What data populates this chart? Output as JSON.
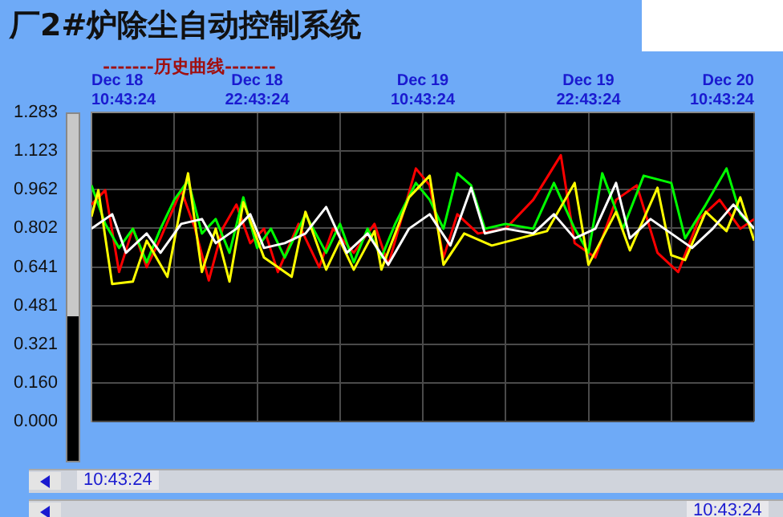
{
  "chart_data": {
    "type": "line",
    "title": "厂2#炉除尘自动控制系统",
    "subtitle": "-------历史曲线-------",
    "xlim": [
      "--12-18T10:43:24",
      "--12-20T10:43:24"
    ],
    "xticks": [
      {
        "value": "--12-18T10:43:24",
        "label": "Dec 18 10:43:24"
      },
      {
        "value": "--12-18T16:43:24",
        "label": null
      },
      {
        "value": "--12-18T22:43:24",
        "label": "Dec 18 22:43:24"
      },
      {
        "value": "--12-19T04:43:24",
        "label": null
      },
      {
        "value": "--12-19T10:43:24",
        "label": "Dec 19 10:43:24"
      },
      {
        "value": "--12-19T16:43:24",
        "label": null
      },
      {
        "value": "--12-19T22:43:24",
        "label": "Dec 19 22:43:24"
      },
      {
        "value": "--12-20T04:43:24",
        "label": null
      },
      {
        "value": "--12-20T10:43:24",
        "label": "Dec 20 10:43:24"
      }
    ],
    "ylim": [
      0,
      1.283
    ],
    "yticks": [
      {
        "value": 0,
        "label": "0.000"
      },
      {
        "value": 0.16,
        "label": "0.160"
      },
      {
        "value": 0.321,
        "label": "0.321"
      },
      {
        "value": 0.481,
        "label": "0.481"
      },
      {
        "value": 0.641,
        "label": "0.641"
      },
      {
        "value": 0.802,
        "label": "0.802"
      },
      {
        "value": 0.962,
        "label": "0.962"
      },
      {
        "value": 1.123,
        "label": "1.123"
      },
      {
        "value": 1.283,
        "label": "1.283"
      }
    ],
    "grid": true,
    "annotations": [
      "10:43:24",
      "10:43:24"
    ],
    "series": [
      {
        "color": "#ff0000",
        "x": [
          "--12-18T10:43:24",
          "--12-18T11:43:24",
          "--12-18T12:43:24",
          "--12-18T13:43:24",
          "--12-18T14:43:24",
          "--12-18T15:43:24",
          "--12-18T17:13:24",
          "--12-18T18:13:24",
          "--12-18T19:13:24",
          "--12-18T20:13:24",
          "--12-18T21:13:24",
          "--12-18T22:13:24",
          "--12-18T23:13:24",
          "--12-19T00:13:24",
          "--12-19T01:43:24",
          "--12-19T03:13:24",
          "--12-19T04:13:24",
          "--12-19T05:43:24",
          "--12-19T07:13:24",
          "--12-19T08:13:24",
          "--12-19T10:13:24",
          "--12-19T11:13:24",
          "--12-19T12:13:24",
          "--12-19T13:13:24",
          "--12-19T14:43:24",
          "--12-19T16:43:24",
          "--12-19T18:43:24",
          "--12-19T20:43:24",
          "--12-19T21:43:24",
          "--12-19T23:13:24",
          "--12-20T00:43:24",
          "--12-20T02:13:24",
          "--12-20T03:43:24",
          "--12-20T05:13:24",
          "--12-20T06:43:24",
          "--12-20T08:13:24",
          "--12-20T09:43:24",
          "--12-20T10:43:24"
        ],
        "values": [
          0.9,
          0.96,
          0.62,
          0.8,
          0.64,
          0.76,
          0.96,
          0.8,
          0.585,
          0.8,
          0.9,
          0.74,
          0.8,
          0.62,
          0.82,
          0.64,
          0.8,
          0.7,
          0.82,
          0.65,
          1.05,
          0.98,
          0.68,
          0.86,
          0.78,
          0.8,
          0.92,
          1.105,
          0.74,
          0.68,
          0.92,
          0.98,
          0.7,
          0.62,
          0.84,
          0.92,
          0.8,
          0.84
        ]
      },
      {
        "color": "#00ff00",
        "x": [
          "--12-18T10:43:24",
          "--12-18T11:43:24",
          "--12-18T12:43:24",
          "--12-18T13:43:24",
          "--12-18T14:43:24",
          "--12-18T15:43:24",
          "--12-18T16:43:24",
          "--12-18T17:43:24",
          "--12-18T18:43:24",
          "--12-18T19:43:24",
          "--12-18T20:43:24",
          "--12-18T21:43:24",
          "--12-18T22:43:24",
          "--12-18T23:43:24",
          "--12-19T00:43:24",
          "--12-19T02:13:24",
          "--12-19T03:43:24",
          "--12-19T04:43:24",
          "--12-19T05:43:24",
          "--12-19T06:43:24",
          "--12-19T07:43:24",
          "--12-19T08:43:24",
          "--12-19T10:13:24",
          "--12-19T11:13:24",
          "--12-19T12:13:24",
          "--12-19T13:13:24",
          "--12-19T14:13:24",
          "--12-19T15:13:24",
          "--12-19T16:43:24",
          "--12-19T18:43:24",
          "--12-19T20:13:24",
          "--12-19T21:43:24",
          "--12-19T22:43:24",
          "--12-19T23:43:24",
          "--12-20T01:13:24",
          "--12-20T02:43:24",
          "--12-20T04:43:24",
          "--12-20T05:43:24",
          "--12-20T07:13:24",
          "--12-20T08:43:24",
          "--12-20T09:43:24",
          "--12-20T10:43:24"
        ],
        "values": [
          0.98,
          0.82,
          0.72,
          0.8,
          0.66,
          0.8,
          0.92,
          1.0,
          0.78,
          0.84,
          0.7,
          0.93,
          0.72,
          0.8,
          0.68,
          0.86,
          0.7,
          0.82,
          0.66,
          0.8,
          0.68,
          0.82,
          0.99,
          0.92,
          0.8,
          1.03,
          0.98,
          0.8,
          0.82,
          0.8,
          0.99,
          0.8,
          0.7,
          1.03,
          0.8,
          1.02,
          0.99,
          0.76,
          0.9,
          1.05,
          0.86,
          0.8
        ]
      },
      {
        "color": "#ffff00",
        "x": [
          "--12-18T10:43:24",
          "--12-18T11:13:24",
          "--12-18T12:13:24",
          "--12-18T13:43:24",
          "--12-18T14:43:24",
          "--12-18T16:13:24",
          "--12-18T17:13:24",
          "--12-18T17:43:24",
          "--12-18T18:43:24",
          "--12-18T19:43:24",
          "--12-18T20:43:24",
          "--12-18T21:43:24",
          "--12-18T23:13:24",
          "--12-19T01:13:24",
          "--12-19T02:13:24",
          "--12-19T03:43:24",
          "--12-19T04:43:24",
          "--12-19T05:43:24",
          "--12-19T07:13:24",
          "--12-19T07:43:24",
          "--12-19T09:43:24",
          "--12-19T11:13:24",
          "--12-19T12:13:24",
          "--12-19T13:43:24",
          "--12-19T15:43:24",
          "--12-19T17:43:24",
          "--12-19T19:43:24",
          "--12-19T21:43:24",
          "--12-19T22:43:24",
          "--12-20T00:43:24",
          "--12-20T01:43:24",
          "--12-20T03:43:24",
          "--12-20T04:43:24",
          "--12-20T05:43:24",
          "--12-20T07:13:24",
          "--12-20T08:43:24",
          "--12-20T09:43:24",
          "--12-20T10:43:24"
        ],
        "values": [
          0.85,
          0.96,
          0.57,
          0.58,
          0.75,
          0.6,
          0.9,
          1.03,
          0.62,
          0.8,
          0.58,
          0.91,
          0.68,
          0.6,
          0.87,
          0.63,
          0.75,
          0.63,
          0.79,
          0.63,
          0.93,
          1.02,
          0.65,
          0.78,
          0.73,
          0.76,
          0.79,
          0.99,
          0.65,
          0.87,
          0.71,
          0.97,
          0.69,
          0.67,
          0.87,
          0.79,
          0.93,
          0.75
        ]
      },
      {
        "color": "#ffffff",
        "x": [
          "--12-18T10:43:24",
          "--12-18T12:13:24",
          "--12-18T13:13:24",
          "--12-18T14:43:24",
          "--12-18T15:43:24",
          "--12-18T17:13:24",
          "--12-18T18:43:24",
          "--12-18T19:43:24",
          "--12-18T21:13:24",
          "--12-18T22:13:24",
          "--12-18T23:13:24",
          "--12-19T00:43:24",
          "--12-19T02:13:24",
          "--12-19T03:43:24",
          "--12-19T05:13:24",
          "--12-19T06:43:24",
          "--12-19T08:13:24",
          "--12-19T09:43:24",
          "--12-19T11:13:24",
          "--12-19T12:43:24",
          "--12-19T14:13:24",
          "--12-19T15:13:24",
          "--12-19T16:43:24",
          "--12-19T18:43:24",
          "--12-19T20:13:24",
          "--12-19T21:43:24",
          "--12-19T23:13:24",
          "--12-20T00:43:24",
          "--12-20T01:43:24",
          "--12-20T03:13:24",
          "--12-20T04:43:24",
          "--12-20T06:13:24",
          "--12-20T07:43:24",
          "--12-20T09:13:24",
          "--12-20T10:43:24"
        ],
        "values": [
          0.8,
          0.86,
          0.7,
          0.78,
          0.7,
          0.82,
          0.84,
          0.74,
          0.8,
          0.86,
          0.72,
          0.74,
          0.78,
          0.89,
          0.7,
          0.78,
          0.65,
          0.8,
          0.86,
          0.73,
          0.97,
          0.78,
          0.8,
          0.78,
          0.86,
          0.76,
          0.8,
          0.99,
          0.76,
          0.84,
          0.78,
          0.72,
          0.8,
          0.9,
          0.8
        ]
      }
    ]
  }
}
